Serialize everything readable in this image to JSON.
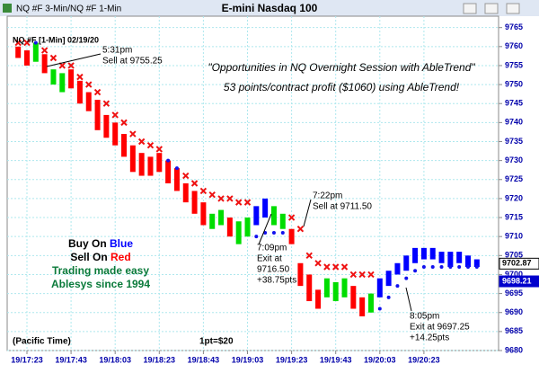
{
  "window_title": "NQ #F 3-Min/NQ #F 1-Min",
  "chart_data": {
    "type": "rangebar",
    "title": "E-mini Nasdaq 100",
    "symbol_label": "NQ #F [1-Min] 02/19/20",
    "headline": [
      "\"Opportunities in NQ Overnight Session with AbleTrend\"",
      "53 points/contract profit ($1060) using AbleTrend!"
    ],
    "annotations": [
      {
        "lines": [
          "5:31pm",
          "Sell at 9755.25"
        ]
      },
      {
        "lines": [
          "7:22pm",
          "Sell at 9711.50"
        ]
      },
      {
        "lines": [
          "7:09pm",
          "Exit at",
          "9716.50",
          "+38.75pts"
        ]
      },
      {
        "lines": [
          "8:05pm",
          "Exit at 9697.25",
          "+14.25pts"
        ]
      }
    ],
    "legend_text": {
      "buy": [
        "Buy On",
        "Blue"
      ],
      "sell": [
        "Sell On",
        "Red"
      ],
      "tagline": [
        "Trading made easy",
        "Ablesys since 1994"
      ]
    },
    "footer": [
      "(Pacific Time)",
      "1pt=$20"
    ],
    "categories": [
      null,
      "19/17:23",
      null,
      null,
      null,
      null,
      "19/17:43",
      null,
      null,
      null,
      null,
      "19/18:03",
      null,
      null,
      null,
      null,
      "19/18:23",
      null,
      null,
      null,
      null,
      "19/18:43",
      null,
      null,
      null,
      null,
      "19/19:03",
      null,
      null,
      null,
      null,
      "19/19:23",
      null,
      null,
      null,
      null,
      "19/19:43",
      null,
      null,
      null,
      null,
      "19/20:03",
      null,
      null,
      null,
      null,
      "19/20:23",
      null,
      null,
      null,
      null,
      null,
      null
    ],
    "highs": [
      9760,
      9759,
      9761,
      9758,
      9754,
      9753,
      9754,
      9751,
      9748,
      9746,
      9742,
      9740,
      9737,
      9734,
      9732,
      9731,
      9732,
      9730,
      9728,
      9724,
      9722,
      9719,
      9716,
      9717,
      9715,
      9714,
      9715,
      9718,
      9720,
      9718,
      9716,
      9712,
      9703,
      9700,
      9696,
      9699,
      9698,
      9699,
      9697,
      9694,
      9695,
      9699,
      9701,
      9703,
      9705,
      9707,
      9707,
      9707,
      9706,
      9706,
      9706,
      9705,
      9704
    ],
    "lows": [
      9757,
      9755,
      9756,
      9753,
      9750,
      9748,
      9749,
      9745,
      9743,
      9738,
      9736,
      9734,
      9731,
      9727,
      9726,
      9726,
      9727,
      9724,
      9722,
      9719,
      9716,
      9713,
      9712,
      9713,
      9710,
      9708,
      9710,
      9713,
      9715,
      9713,
      9712,
      9708,
      9697,
      9693,
      9691,
      9694,
      9693,
      9694,
      9691,
      9689,
      9690,
      9694,
      9697,
      9700,
      9701,
      9703,
      9704,
      9704,
      9703,
      9702,
      9703,
      9702,
      9702
    ],
    "colors": [
      "#ff0000",
      "#ff0000",
      "#00dd00",
      "#ff0000",
      "#00dd00",
      "#00dd00",
      "#ff0000",
      "#ff0000",
      "#ff0000",
      "#ff0000",
      "#ff0000",
      "#ff0000",
      "#ff0000",
      "#ff0000",
      "#ff0000",
      "#ff0000",
      "#ff0000",
      "#ff0000",
      "#ff0000",
      "#ff0000",
      "#ff0000",
      "#ff0000",
      "#00dd00",
      "#00dd00",
      "#ff0000",
      "#00dd00",
      "#00dd00",
      "#0000ff",
      "#0000ff",
      "#00dd00",
      "#00dd00",
      "#ff0000",
      "#ff0000",
      "#ff0000",
      "#ff0000",
      "#00dd00",
      "#00dd00",
      "#00dd00",
      "#ff0000",
      "#ff0000",
      "#00dd00",
      "#0000ff",
      "#0000ff",
      "#0000ff",
      "#0000ff",
      "#0000ff",
      "#0000ff",
      "#0000ff",
      "#0000ff",
      "#0000ff",
      "#0000ff",
      "#0000ff",
      "#0000ff"
    ],
    "stops": [
      9761,
      9761,
      9761,
      9759,
      9757,
      9755,
      9755,
      9752,
      9750,
      9748,
      9745,
      9742,
      9740,
      9737,
      9735,
      9734,
      9733,
      9730,
      9728,
      9726,
      9724,
      9722,
      9721,
      9720,
      9720,
      9719,
      9719,
      9710,
      9711,
      9711,
      9711,
      9715,
      9712,
      9705,
      9703,
      9702,
      9702,
      9702,
      9700,
      9700,
      9700,
      9691,
      9694,
      9697,
      9699,
      9701,
      9702,
      9702,
      9702,
      9702,
      9702,
      9702,
      9702
    ],
    "stop_colors": {
      "above": "#ee1111",
      "below": "#1111ee"
    },
    "price_labels": [
      9702.87,
      9698.21
    ],
    "price_label_colors": [
      "#000000",
      "#0000cc"
    ],
    "ylim": [
      9680,
      9768
    ],
    "yticks": [
      9680,
      9685,
      9690,
      9695,
      9700,
      9705,
      9710,
      9715,
      9720,
      9725,
      9730,
      9735,
      9740,
      9745,
      9750,
      9755,
      9760,
      9765
    ],
    "grid": true
  }
}
